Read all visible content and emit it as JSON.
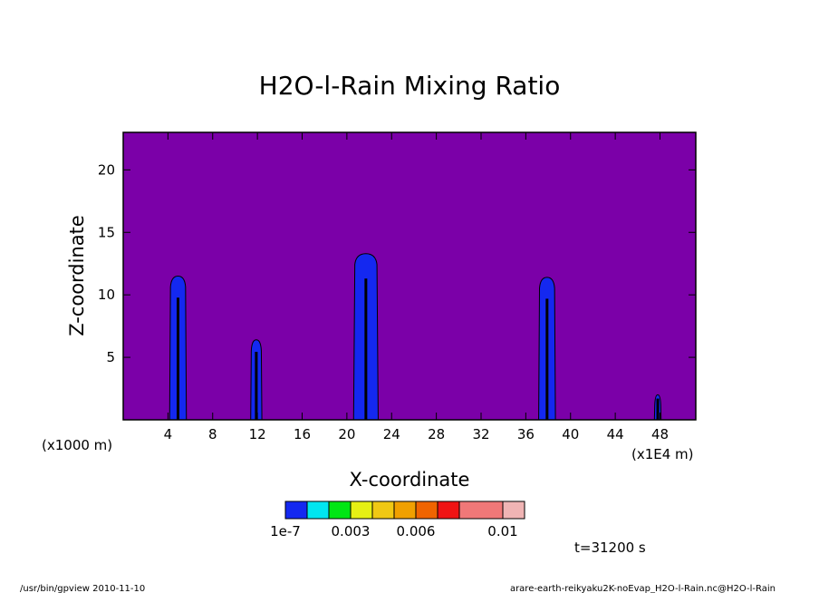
{
  "chart_data": {
    "type": "heatmap",
    "title": "H2O-l-Rain Mixing Ratio",
    "xlabel": "X-coordinate",
    "ylabel": "Z-coordinate",
    "x_unit_left": "(x1000 m)",
    "x_unit_right": "(x1E4 m)",
    "x_ticks": [
      "4",
      "8",
      "12",
      "16",
      "20",
      "24",
      "28",
      "32",
      "36",
      "40",
      "44",
      "48"
    ],
    "y_ticks": [
      "5",
      "10",
      "15",
      "20"
    ],
    "xlim": [
      0,
      51.2
    ],
    "ylim": [
      0,
      23
    ],
    "background_color": "#7b00a8",
    "columns": [
      {
        "x_center": 4.9,
        "top": 11.5,
        "width": 1.5
      },
      {
        "x_center": 11.9,
        "top": 6.4,
        "width": 1.0
      },
      {
        "x_center": 21.7,
        "top": 13.3,
        "width": 2.2
      },
      {
        "x_center": 37.9,
        "top": 11.4,
        "width": 1.5
      },
      {
        "x_center": 47.8,
        "top": 2.0,
        "width": 0.6
      }
    ],
    "colorbar": {
      "colors": [
        "#1428f0",
        "#00e6f0",
        "#00e614",
        "#e6f014",
        "#f0c814",
        "#f0a000",
        "#f06400",
        "#f01414",
        "#f07878",
        "#f0b4b4"
      ],
      "labels": [
        "1e-7",
        "0.003",
        "0.006",
        "0.01"
      ]
    },
    "time_label": "t=31200 s"
  },
  "footer": {
    "left": "/usr/bin/gpview  2010-11-10",
    "right": "arare-earth-reikyaku2K-noEvap_H2O-l-Rain.nc@H2O-l-Rain"
  }
}
